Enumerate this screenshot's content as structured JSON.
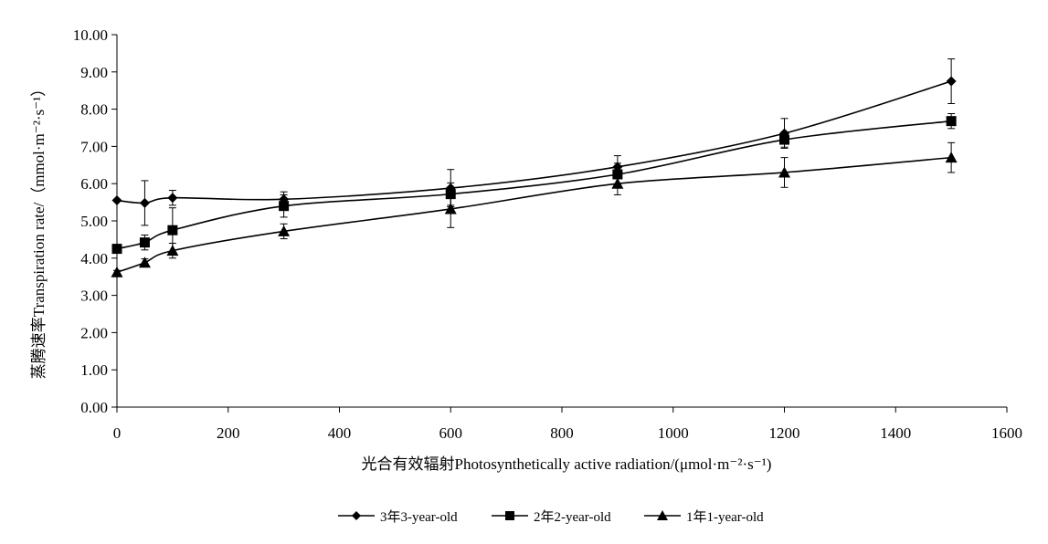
{
  "chart_data": {
    "type": "line",
    "xlabel": "光合有效辐射Photosynthetically active radiation/(μmol·m⁻²·s⁻¹)",
    "ylabel": "蒸腾速率Transpiration rate/（mmol·m⁻²·s⁻¹）",
    "xlim": [
      0,
      1600
    ],
    "ylim": [
      0,
      10
    ],
    "x_ticks": [
      "0",
      "200",
      "400",
      "600",
      "800",
      "1000",
      "1200",
      "1400",
      "1600"
    ],
    "y_ticks": [
      "0.00",
      "1.00",
      "2.00",
      "3.00",
      "4.00",
      "5.00",
      "6.00",
      "7.00",
      "8.00",
      "9.00",
      "10.00"
    ],
    "grid": false,
    "legend_position": "bottom",
    "x": [
      0,
      50,
      100,
      300,
      600,
      900,
      1200,
      1500
    ],
    "series": [
      {
        "name": "3年3-year-old",
        "marker": "diamond",
        "values": [
          5.55,
          5.48,
          5.62,
          5.58,
          5.88,
          6.45,
          7.35,
          8.75
        ],
        "errors": [
          0.0,
          0.6,
          0.2,
          0.2,
          0.5,
          0.3,
          0.4,
          0.6
        ]
      },
      {
        "name": "2年2-year-old",
        "marker": "square",
        "values": [
          4.25,
          4.42,
          4.75,
          5.4,
          5.72,
          6.25,
          7.18,
          7.68
        ],
        "errors": [
          0.1,
          0.2,
          0.6,
          0.3,
          0.3,
          0.3,
          0.2,
          0.2
        ]
      },
      {
        "name": "1年1-year-old",
        "marker": "triangle",
        "values": [
          3.62,
          3.88,
          4.2,
          4.72,
          5.32,
          6.0,
          6.3,
          6.7
        ],
        "errors": [
          0.05,
          0.1,
          0.2,
          0.2,
          0.5,
          0.3,
          0.4,
          0.4
        ]
      }
    ],
    "colors": {
      "line": "#000000",
      "marker": "#000000"
    }
  }
}
